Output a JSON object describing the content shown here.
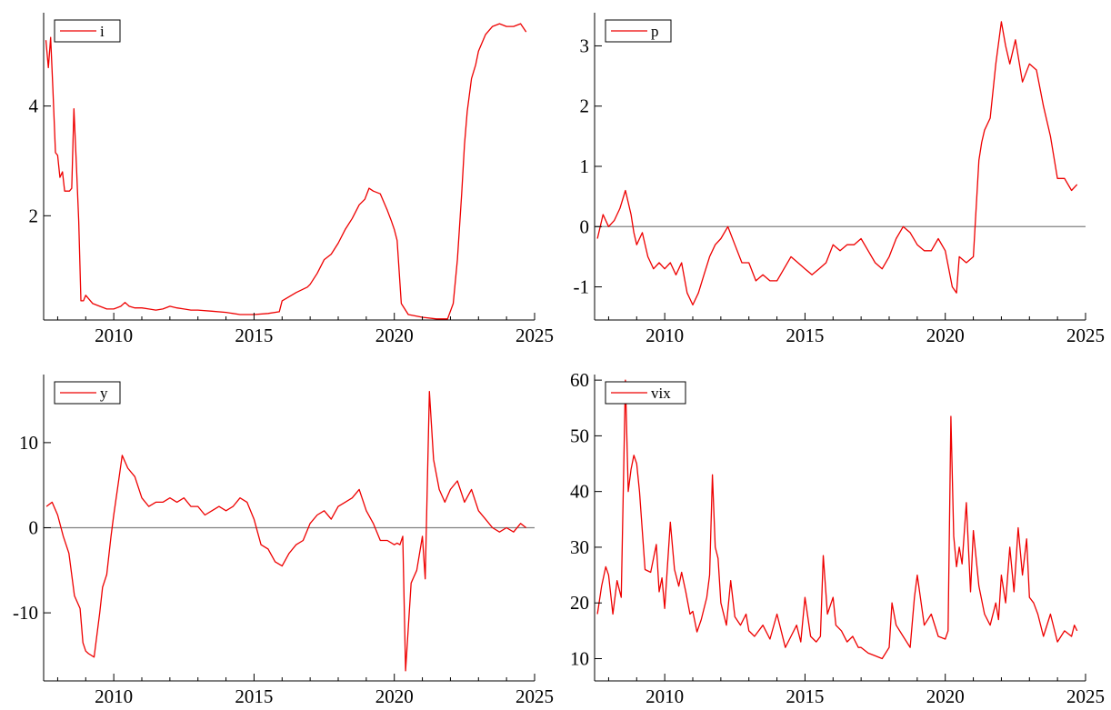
{
  "colors": {
    "series": "#ee0000",
    "axis": "#000000",
    "zero_line": "#808080",
    "background": "#ffffff"
  },
  "chart_data": [
    {
      "type": "line",
      "legend": [
        "i"
      ],
      "legend_position": "top-left",
      "grid": false,
      "xlim": [
        2007.5,
        2025
      ],
      "ylim": [
        0.1,
        5.7
      ],
      "x_ticks": [
        2010,
        2015,
        2020,
        2025
      ],
      "x_tick_labels": [
        "2010",
        "2015",
        "2020",
        "2025"
      ],
      "y_ticks": [
        2,
        4
      ],
      "y_tick_labels": [
        "2",
        "4"
      ],
      "zero_line": false,
      "series": [
        {
          "name": "i",
          "x": [
            2007.58,
            2007.67,
            2007.75,
            2007.83,
            2007.92,
            2008.0,
            2008.08,
            2008.17,
            2008.25,
            2008.33,
            2008.42,
            2008.5,
            2008.58,
            2008.67,
            2008.75,
            2008.83,
            2008.92,
            2009.0,
            2009.25,
            2009.5,
            2009.75,
            2010.0,
            2010.25,
            2010.4,
            2010.55,
            2010.75,
            2011.0,
            2011.25,
            2011.5,
            2011.75,
            2012.0,
            2012.25,
            2012.5,
            2012.75,
            2013.0,
            2013.5,
            2014.0,
            2014.5,
            2015.0,
            2015.5,
            2015.9,
            2016.0,
            2016.5,
            2016.9,
            2017.0,
            2017.25,
            2017.5,
            2017.75,
            2018.0,
            2018.25,
            2018.5,
            2018.75,
            2018.95,
            2019.1,
            2019.25,
            2019.5,
            2019.75,
            2019.9,
            2020.0,
            2020.1,
            2020.25,
            2020.5,
            2021.0,
            2021.5,
            2021.9,
            2022.1,
            2022.25,
            2022.4,
            2022.5,
            2022.6,
            2022.75,
            2022.9,
            2023.0,
            2023.25,
            2023.5,
            2023.75,
            2024.0,
            2024.25,
            2024.5,
            2024.7
          ],
          "y": [
            5.2,
            4.7,
            5.25,
            4.3,
            3.15,
            3.1,
            2.7,
            2.8,
            2.45,
            2.45,
            2.45,
            2.5,
            3.95,
            2.9,
            1.9,
            0.45,
            0.45,
            0.55,
            0.4,
            0.35,
            0.3,
            0.3,
            0.35,
            0.42,
            0.35,
            0.32,
            0.32,
            0.3,
            0.28,
            0.3,
            0.35,
            0.32,
            0.3,
            0.28,
            0.28,
            0.26,
            0.24,
            0.2,
            0.2,
            0.22,
            0.25,
            0.45,
            0.6,
            0.7,
            0.75,
            0.95,
            1.2,
            1.3,
            1.5,
            1.75,
            1.95,
            2.2,
            2.3,
            2.5,
            2.45,
            2.4,
            2.1,
            1.9,
            1.75,
            1.55,
            0.4,
            0.2,
            0.15,
            0.12,
            0.12,
            0.4,
            1.2,
            2.4,
            3.3,
            3.9,
            4.5,
            4.75,
            5.0,
            5.3,
            5.45,
            5.5,
            5.45,
            5.45,
            5.5,
            5.35
          ]
        }
      ]
    },
    {
      "type": "line",
      "legend": [
        "p"
      ],
      "legend_position": "top-left",
      "grid": false,
      "xlim": [
        2007.5,
        2025
      ],
      "ylim": [
        -1.55,
        3.55
      ],
      "x_ticks": [
        2010,
        2015,
        2020,
        2025
      ],
      "x_tick_labels": [
        "2010",
        "2015",
        "2020",
        "2025"
      ],
      "y_ticks": [
        -1,
        0,
        1,
        2,
        3
      ],
      "y_tick_labels": [
        "-1",
        "0",
        "1",
        "2",
        "3"
      ],
      "zero_line": true,
      "series": [
        {
          "name": "p",
          "x": [
            2007.6,
            2007.8,
            2008.0,
            2008.2,
            2008.4,
            2008.6,
            2008.8,
            2008.9,
            2009.0,
            2009.2,
            2009.4,
            2009.5,
            2009.6,
            2009.8,
            2010.0,
            2010.2,
            2010.4,
            2010.6,
            2010.8,
            2011.0,
            2011.2,
            2011.4,
            2011.6,
            2011.8,
            2012.0,
            2012.25,
            2012.5,
            2012.75,
            2013.0,
            2013.25,
            2013.5,
            2013.75,
            2014.0,
            2014.25,
            2014.5,
            2014.75,
            2015.0,
            2015.25,
            2015.5,
            2015.75,
            2016.0,
            2016.25,
            2016.5,
            2016.75,
            2017.0,
            2017.25,
            2017.5,
            2017.75,
            2018.0,
            2018.25,
            2018.5,
            2018.75,
            2019.0,
            2019.25,
            2019.5,
            2019.75,
            2020.0,
            2020.25,
            2020.4,
            2020.5,
            2020.75,
            2021.0,
            2021.2,
            2021.3,
            2021.4,
            2021.6,
            2021.8,
            2022.0,
            2022.15,
            2022.3,
            2022.5,
            2022.75,
            2023.0,
            2023.25,
            2023.5,
            2023.75,
            2024.0,
            2024.25,
            2024.5,
            2024.7
          ],
          "y": [
            -0.2,
            0.2,
            0.0,
            0.1,
            0.3,
            0.6,
            0.2,
            -0.1,
            -0.3,
            -0.1,
            -0.5,
            -0.6,
            -0.7,
            -0.6,
            -0.7,
            -0.6,
            -0.8,
            -0.6,
            -1.1,
            -1.3,
            -1.1,
            -0.8,
            -0.5,
            -0.3,
            -0.2,
            0.0,
            -0.3,
            -0.6,
            -0.6,
            -0.9,
            -0.8,
            -0.9,
            -0.9,
            -0.7,
            -0.5,
            -0.6,
            -0.7,
            -0.8,
            -0.7,
            -0.6,
            -0.3,
            -0.4,
            -0.3,
            -0.3,
            -0.2,
            -0.4,
            -0.6,
            -0.7,
            -0.5,
            -0.2,
            0.0,
            -0.1,
            -0.3,
            -0.4,
            -0.4,
            -0.2,
            -0.4,
            -1.0,
            -1.1,
            -0.5,
            -0.6,
            -0.5,
            1.1,
            1.4,
            1.6,
            1.8,
            2.7,
            3.4,
            3.0,
            2.7,
            3.1,
            2.4,
            2.7,
            2.6,
            2.0,
            1.5,
            0.8,
            0.8,
            0.6,
            0.7
          ]
        }
      ]
    },
    {
      "type": "line",
      "legend": [
        "y"
      ],
      "legend_position": "top-left",
      "grid": false,
      "xlim": [
        2007.5,
        2025
      ],
      "ylim": [
        -18,
        18
      ],
      "x_ticks": [
        2010,
        2015,
        2020,
        2025
      ],
      "x_tick_labels": [
        "2010",
        "2015",
        "2020",
        "2025"
      ],
      "y_ticks": [
        -10,
        0,
        10
      ],
      "y_tick_labels": [
        "-10",
        "0",
        "10"
      ],
      "zero_line": true,
      "series": [
        {
          "name": "y",
          "x": [
            2007.6,
            2007.8,
            2008.0,
            2008.2,
            2008.4,
            2008.6,
            2008.8,
            2008.9,
            2009.0,
            2009.1,
            2009.3,
            2009.5,
            2009.6,
            2009.75,
            2009.9,
            2010.0,
            2010.15,
            2010.3,
            2010.5,
            2010.75,
            2011.0,
            2011.25,
            2011.5,
            2011.75,
            2012.0,
            2012.25,
            2012.5,
            2012.75,
            2013.0,
            2013.25,
            2013.5,
            2013.75,
            2014.0,
            2014.25,
            2014.5,
            2014.75,
            2015.0,
            2015.25,
            2015.5,
            2015.75,
            2016.0,
            2016.25,
            2016.5,
            2016.75,
            2017.0,
            2017.25,
            2017.5,
            2017.75,
            2018.0,
            2018.25,
            2018.5,
            2018.75,
            2019.0,
            2019.25,
            2019.5,
            2019.75,
            2020.0,
            2020.1,
            2020.2,
            2020.3,
            2020.4,
            2020.6,
            2020.8,
            2021.0,
            2021.1,
            2021.25,
            2021.4,
            2021.6,
            2021.8,
            2022.0,
            2022.25,
            2022.5,
            2022.75,
            2023.0,
            2023.25,
            2023.5,
            2023.75,
            2024.0,
            2024.25,
            2024.5,
            2024.7
          ],
          "y": [
            2.5,
            3.0,
            1.5,
            -1.0,
            -3.0,
            -8.0,
            -9.5,
            -13.5,
            -14.5,
            -14.8,
            -15.2,
            -10.0,
            -7.0,
            -5.5,
            -1.0,
            1.5,
            5.0,
            8.5,
            7.0,
            6.0,
            3.5,
            2.5,
            3.0,
            3.0,
            3.5,
            3.0,
            3.5,
            2.5,
            2.5,
            1.5,
            2.0,
            2.5,
            2.0,
            2.5,
            3.5,
            3.0,
            1.0,
            -2.0,
            -2.5,
            -4.0,
            -4.5,
            -3.0,
            -2.0,
            -1.5,
            0.5,
            1.5,
            2.0,
            1.0,
            2.5,
            3.0,
            3.5,
            4.5,
            2.0,
            0.5,
            -1.5,
            -1.5,
            -2.0,
            -1.8,
            -2.0,
            -1.0,
            -16.8,
            -6.5,
            -5.0,
            -1.0,
            -6.0,
            16.0,
            8.0,
            4.5,
            3.0,
            4.5,
            5.5,
            3.0,
            4.5,
            2.0,
            1.0,
            0.0,
            -0.5,
            0.0,
            -0.5,
            0.5,
            0.0
          ]
        }
      ]
    },
    {
      "type": "line",
      "legend": [
        "vix"
      ],
      "legend_position": "top-left",
      "grid": false,
      "xlim": [
        2007.5,
        2025
      ],
      "ylim": [
        6,
        61
      ],
      "x_ticks": [
        2010,
        2015,
        2020,
        2025
      ],
      "x_tick_labels": [
        "2010",
        "2015",
        "2020",
        "2025"
      ],
      "y_ticks": [
        10,
        20,
        30,
        40,
        50,
        60
      ],
      "y_tick_labels": [
        "10",
        "20",
        "30",
        "40",
        "50",
        "60"
      ],
      "zero_line": false,
      "series": [
        {
          "name": "vix",
          "x": [
            2007.6,
            2007.75,
            2007.9,
            2008.0,
            2008.15,
            2008.3,
            2008.45,
            2008.6,
            2008.7,
            2008.8,
            2008.9,
            2009.0,
            2009.1,
            2009.3,
            2009.5,
            2009.7,
            2009.8,
            2009.9,
            2010.0,
            2010.2,
            2010.35,
            2010.5,
            2010.6,
            2010.75,
            2010.9,
            2011.0,
            2011.15,
            2011.3,
            2011.5,
            2011.6,
            2011.7,
            2011.8,
            2011.9,
            2012.0,
            2012.2,
            2012.35,
            2012.5,
            2012.7,
            2012.9,
            2013.0,
            2013.2,
            2013.5,
            2013.75,
            2014.0,
            2014.3,
            2014.5,
            2014.7,
            2014.85,
            2015.0,
            2015.2,
            2015.4,
            2015.55,
            2015.65,
            2015.8,
            2016.0,
            2016.1,
            2016.3,
            2016.5,
            2016.7,
            2016.9,
            2017.0,
            2017.25,
            2017.5,
            2017.75,
            2018.0,
            2018.1,
            2018.25,
            2018.5,
            2018.75,
            2018.9,
            2019.0,
            2019.25,
            2019.5,
            2019.75,
            2020.0,
            2020.1,
            2020.2,
            2020.3,
            2020.4,
            2020.5,
            2020.6,
            2020.75,
            2020.9,
            2021.0,
            2021.2,
            2021.4,
            2021.6,
            2021.8,
            2021.9,
            2022.0,
            2022.15,
            2022.3,
            2022.45,
            2022.6,
            2022.75,
            2022.9,
            2023.0,
            2023.15,
            2023.3,
            2023.5,
            2023.75,
            2024.0,
            2024.25,
            2024.5,
            2024.6,
            2024.7
          ],
          "y": [
            18.0,
            23.0,
            26.5,
            25.0,
            18.0,
            24.0,
            21.0,
            60.0,
            40.0,
            44.0,
            46.5,
            45.0,
            40.0,
            26.0,
            25.5,
            30.5,
            22.0,
            24.5,
            19.0,
            34.5,
            26.0,
            23.0,
            25.5,
            22.0,
            18.0,
            18.5,
            14.8,
            17.0,
            21.0,
            25.0,
            43.0,
            30.0,
            28.0,
            20.0,
            16.0,
            24.0,
            17.5,
            16.0,
            18.0,
            15.0,
            14.0,
            16.0,
            13.5,
            18.0,
            12.0,
            14.0,
            16.0,
            13.0,
            21.0,
            14.0,
            13.0,
            14.0,
            28.5,
            18.0,
            21.0,
            16.0,
            15.0,
            13.0,
            14.0,
            12.0,
            12.0,
            11.0,
            10.5,
            10.0,
            12.0,
            20.0,
            16.0,
            14.0,
            12.0,
            21.0,
            25.0,
            16.0,
            18.0,
            14.0,
            13.5,
            15.0,
            53.5,
            32.0,
            26.5,
            30.0,
            27.0,
            38.0,
            22.0,
            33.0,
            23.0,
            18.0,
            16.0,
            20.0,
            17.0,
            25.0,
            20.0,
            30.0,
            22.0,
            33.5,
            25.0,
            31.5,
            21.0,
            20.0,
            18.0,
            14.0,
            18.0,
            13.0,
            15.0,
            14.0,
            16.0,
            15.0
          ]
        }
      ]
    }
  ]
}
